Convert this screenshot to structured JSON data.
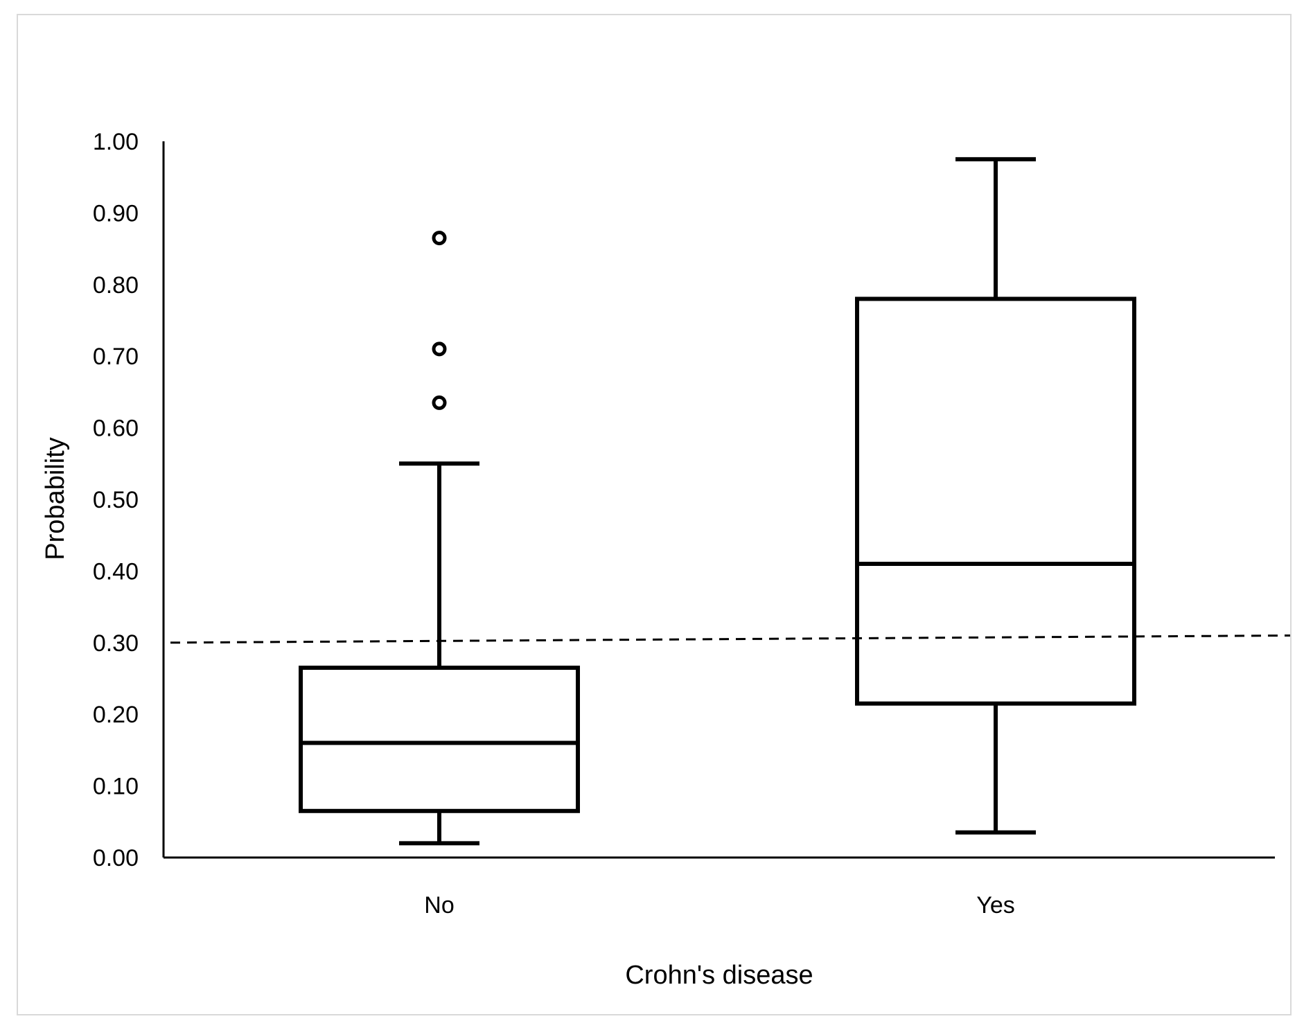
{
  "chart_data": {
    "type": "boxplot",
    "title": "",
    "xlabel": "Crohn's disease",
    "ylabel": "Probability",
    "ylim": [
      0,
      1
    ],
    "yticks": [
      "0.00",
      "0.10",
      "0.20",
      "0.30",
      "0.40",
      "0.50",
      "0.60",
      "0.70",
      "0.80",
      "0.90",
      "1.00"
    ],
    "grid": false,
    "legend": "none",
    "categories": [
      "No",
      "Yes"
    ],
    "boxes": [
      {
        "category": "No",
        "whisker_low": 0.02,
        "q1": 0.065,
        "median": 0.16,
        "q3": 0.265,
        "whisker_high": 0.55,
        "outliers": [
          0.635,
          0.71,
          0.865
        ]
      },
      {
        "category": "Yes",
        "whisker_low": 0.035,
        "q1": 0.215,
        "median": 0.41,
        "q3": 0.78,
        "whisker_high": 0.975,
        "outliers": []
      }
    ],
    "reference_line": {
      "y_start": 0.3,
      "y_end": 0.31,
      "style": "dashed"
    },
    "colors": {
      "stroke": "#000000",
      "frame": "#d9d9d9",
      "background": "#ffffff"
    }
  }
}
